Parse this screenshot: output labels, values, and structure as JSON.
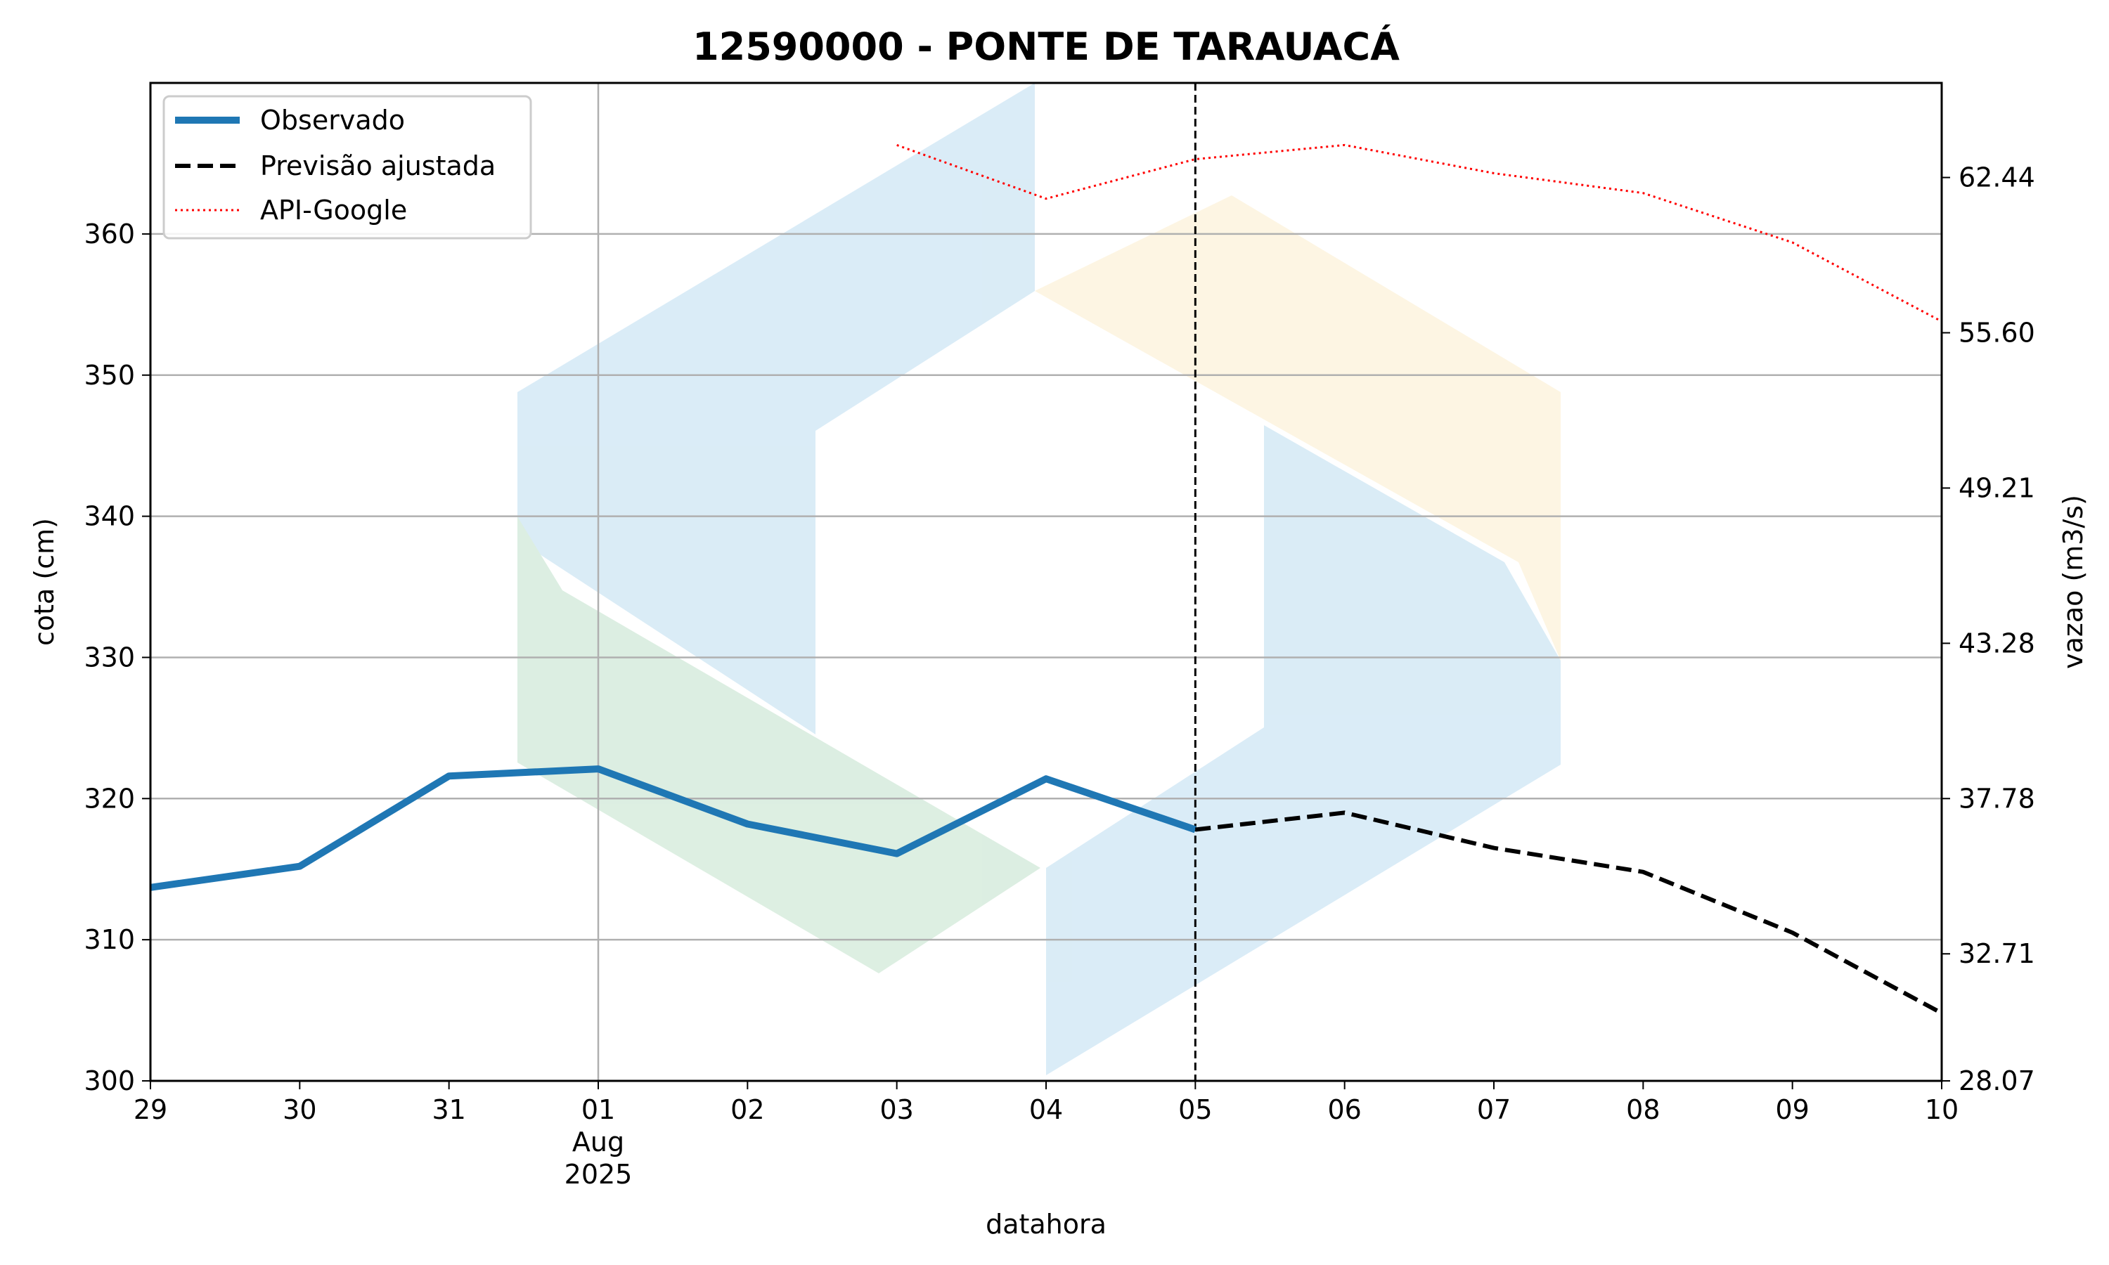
{
  "chart_data": {
    "type": "line",
    "title": "12590000 - PONTE DE TARAUACÁ",
    "xlabel": "datahora",
    "ylabel": "cota (cm)",
    "ylabel_right": "vazao (m3/s)",
    "x": [
      "29",
      "30",
      "31",
      "01",
      "02",
      "03",
      "04",
      "05",
      "06",
      "07",
      "08",
      "09",
      "10"
    ],
    "x_sublabel": {
      "index": 3,
      "month": "Aug",
      "year": "2025"
    },
    "ylim": [
      300,
      370.7
    ],
    "yticks": [
      300,
      310,
      320,
      330,
      340,
      350,
      360
    ],
    "yticks_right": [
      {
        "cota": 300,
        "label": "28.07"
      },
      {
        "cota": 309,
        "label": "32.71"
      },
      {
        "cota": 320,
        "label": "37.78"
      },
      {
        "cota": 331,
        "label": "43.28"
      },
      {
        "cota": 342,
        "label": "49.21"
      },
      {
        "cota": 353,
        "label": "55.60"
      },
      {
        "cota": 364,
        "label": "62.44"
      }
    ],
    "grid": true,
    "legend_position": "top-left",
    "vline_x_index": 7,
    "series": [
      {
        "name": "Observado",
        "style": "solid",
        "color": "#1f77b4",
        "points": [
          [
            0,
            313.7
          ],
          [
            1,
            315.2
          ],
          [
            2,
            321.6
          ],
          [
            3,
            322.1
          ],
          [
            4,
            318.2
          ],
          [
            5,
            316.1
          ],
          [
            6,
            321.4
          ],
          [
            7,
            317.8
          ]
        ]
      },
      {
        "name": "Previsão ajustada",
        "style": "dashed",
        "color": "#000000",
        "points": [
          [
            7,
            317.8
          ],
          [
            8,
            319.0
          ],
          [
            9,
            316.5
          ],
          [
            10,
            314.8
          ],
          [
            11,
            310.5
          ],
          [
            12,
            304.8
          ]
        ]
      },
      {
        "name": "API-Google",
        "style": "dotted",
        "color": "#ff0000",
        "points": [
          [
            5,
            366.3
          ],
          [
            6,
            362.5
          ],
          [
            7,
            365.3
          ],
          [
            8,
            366.3
          ],
          [
            9,
            364.3
          ],
          [
            10,
            362.9
          ],
          [
            11,
            359.4
          ],
          [
            12,
            353.8
          ]
        ]
      }
    ]
  }
}
